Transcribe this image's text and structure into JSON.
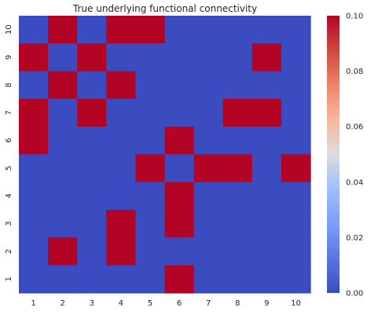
{
  "chart_data": {
    "type": "heatmap",
    "title": "True underlying functional connectivity",
    "x_labels": [
      "1",
      "2",
      "3",
      "4",
      "5",
      "6",
      "7",
      "8",
      "9",
      "10"
    ],
    "y_labels": [
      "1",
      "2",
      "3",
      "4",
      "5",
      "6",
      "7",
      "8",
      "9",
      "10"
    ],
    "rows_top_to_bottom": [
      [
        0,
        0.1,
        0,
        0.1,
        0.1,
        0,
        0,
        0,
        0,
        0
      ],
      [
        0.1,
        0,
        0.1,
        0,
        0,
        0,
        0,
        0,
        0.1,
        0
      ],
      [
        0,
        0.1,
        0,
        0.1,
        0,
        0,
        0,
        0,
        0,
        0
      ],
      [
        0.1,
        0,
        0.1,
        0,
        0,
        0,
        0,
        0.1,
        0.1,
        0
      ],
      [
        0.1,
        0,
        0,
        0,
        0,
        0.1,
        0,
        0,
        0,
        0
      ],
      [
        0,
        0,
        0,
        0,
        0.1,
        0,
        0.1,
        0.1,
        0,
        0.1
      ],
      [
        0,
        0,
        0,
        0,
        0,
        0.1,
        0,
        0,
        0,
        0
      ],
      [
        0,
        0,
        0,
        0.1,
        0,
        0.1,
        0,
        0,
        0,
        0
      ],
      [
        0,
        0.1,
        0,
        0.1,
        0,
        0,
        0,
        0,
        0,
        0
      ],
      [
        0,
        0,
        0,
        0,
        0,
        0.1,
        0,
        0,
        0,
        0
      ]
    ],
    "colorbar": {
      "min": 0.0,
      "max": 0.1,
      "ticks": [
        "0.00",
        "0.02",
        "0.04",
        "0.06",
        "0.08",
        "0.10"
      ],
      "colormap": "coolwarm"
    },
    "colors": {
      "low": "#3b4cc0",
      "high": "#b40426"
    },
    "grid": false
  }
}
